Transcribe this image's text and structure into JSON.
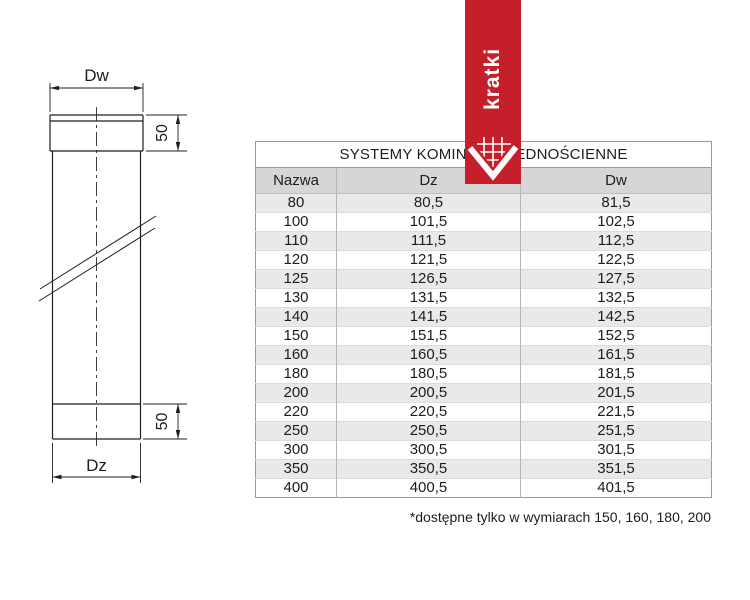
{
  "drawing": {
    "labels": {
      "top_diameter": "Dw",
      "bottom_diameter": "Dz",
      "socket_height": "50",
      "collar_height": "50"
    }
  },
  "ribbon": {
    "brand": "kratki"
  },
  "table": {
    "title": "SYSTEMY KOMINOWE JEDNOŚCIENNE",
    "columns": [
      "Nazwa",
      "Dz",
      "Dw"
    ],
    "rows": [
      [
        "80",
        "80,5",
        "81,5"
      ],
      [
        "100",
        "101,5",
        "102,5"
      ],
      [
        "110",
        "111,5",
        "112,5"
      ],
      [
        "120",
        "121,5",
        "122,5"
      ],
      [
        "125",
        "126,5",
        "127,5"
      ],
      [
        "130",
        "131,5",
        "132,5"
      ],
      [
        "140",
        "141,5",
        "142,5"
      ],
      [
        "150",
        "151,5",
        "152,5"
      ],
      [
        "160",
        "160,5",
        "161,5"
      ],
      [
        "180",
        "180,5",
        "181,5"
      ],
      [
        "200",
        "200,5",
        "201,5"
      ],
      [
        "220",
        "220,5",
        "221,5"
      ],
      [
        "250",
        "250,5",
        "251,5"
      ],
      [
        "300",
        "300,5",
        "301,5"
      ],
      [
        "350",
        "350,5",
        "351,5"
      ],
      [
        "400",
        "400,5",
        "401,5"
      ]
    ]
  },
  "footnote": "*dostępne tylko w wymiarach 150, 160, 180, 200",
  "colors": {
    "accent_red": "#c51f2b",
    "header_row": "#d7d6d4",
    "shaded_row": "#eae9e7",
    "table_border": "#9a9a9a",
    "text": "#1d1d1b"
  }
}
